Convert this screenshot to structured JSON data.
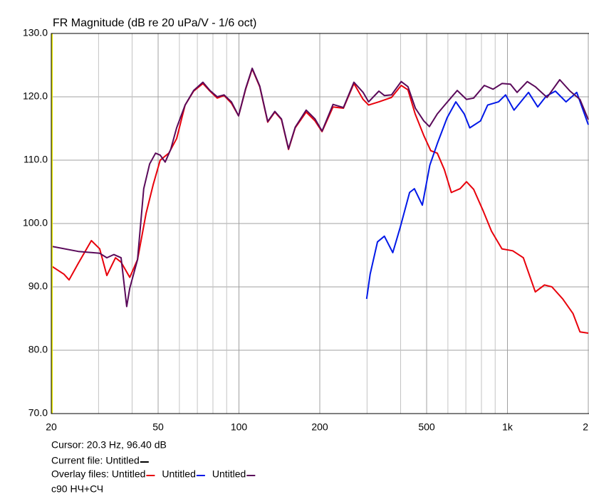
{
  "chart_data": {
    "type": "line",
    "title": "FR Magnitude (dB re 20 uPa/V - 1/6 oct)",
    "x_log": true,
    "grid": true,
    "xlim": [
      20,
      2000
    ],
    "ylim": [
      70,
      130
    ],
    "xticks": [
      20,
      50,
      100,
      200,
      500,
      {
        "value": 1000,
        "label": "1k"
      },
      {
        "value": 2000,
        "label": "2"
      }
    ],
    "xgrid": [
      30,
      40,
      60,
      70,
      80,
      90,
      300,
      400,
      600,
      700,
      800,
      900
    ],
    "yticks": [
      {
        "value": 70,
        "label": "70.0"
      },
      {
        "value": 80,
        "label": "80.0"
      },
      {
        "value": 90,
        "label": "90.0"
      },
      {
        "value": 100,
        "label": "100.0"
      },
      {
        "value": 110,
        "label": "110.0"
      },
      {
        "value": 120,
        "label": "120.0"
      },
      {
        "value": 130,
        "label": "130.0"
      }
    ],
    "cursor": "Cursor: 20.3 Hz, 96.40 dB",
    "current_label": "Current file:",
    "current_name": "Untitled",
    "overlay_label": "Overlay files:",
    "note": "с90 НЧ+СЧ",
    "series": [
      {
        "name": "Untitled",
        "color": "#e8000b",
        "x": [
          20,
          22.3,
          23.3,
          25.2,
          28.2,
          30.3,
          32.2,
          34.7,
          36.4,
          39.2,
          41.9,
          45.1,
          47.9,
          50.9,
          54.8,
          58.6,
          63,
          67.8,
          73.4,
          78,
          83,
          88,
          93.7,
          99.7,
          105.9,
          112,
          119.5,
          128,
          136,
          144,
          153,
          162,
          178,
          192,
          204,
          224,
          245,
          268,
          290,
          304,
          332,
          370,
          402,
          426,
          453,
          488,
          518,
          548,
          582,
          618,
          666,
          704,
          748,
          810,
          872,
          954,
          1046,
          1146,
          1270,
          1374,
          1464,
          1606,
          1754,
          1862,
          2000
        ],
        "values": [
          93.3,
          92.0,
          91.1,
          93.7,
          97.3,
          96.0,
          91.8,
          94.6,
          93.9,
          91.5,
          94.3,
          101.6,
          106.1,
          110.0,
          111.1,
          113.4,
          118.7,
          120.9,
          122.1,
          120.9,
          119.8,
          120.2,
          119.0,
          117.0,
          121.2,
          124.4,
          121.6,
          116.0,
          117.6,
          116.4,
          111.7,
          115.1,
          117.6,
          116.2,
          114.5,
          118.4,
          118.2,
          122.1,
          119.6,
          118.7,
          119.2,
          119.9,
          121.8,
          121.1,
          117.3,
          113.9,
          111.5,
          111.1,
          108.5,
          104.9,
          105.5,
          106.6,
          105.4,
          102.1,
          98.8,
          96.0,
          95.7,
          94.6,
          89.2,
          90.3,
          90.0,
          88.1,
          85.8,
          82.9,
          82.7
        ]
      },
      {
        "name": "Untitled",
        "color": "#0018e8",
        "x": [
          299,
          308,
          328,
          348,
          374,
          398,
          432,
          450,
          482,
          514,
          550,
          596,
          642,
          690,
          724,
          794,
          844,
          926,
          984,
          1058,
          1198,
          1296,
          1394,
          1508,
          1652,
          1812,
          2000
        ],
        "values": [
          88.1,
          92.0,
          97.1,
          98.0,
          95.4,
          99.3,
          104.9,
          105.5,
          102.9,
          109.2,
          112.8,
          116.7,
          119.2,
          117.3,
          115.1,
          116.2,
          118.7,
          119.2,
          120.3,
          117.9,
          120.7,
          118.4,
          120.1,
          120.9,
          119.2,
          120.7,
          115.6
        ]
      },
      {
        "name": "Untitled",
        "color": "#5a0a5a",
        "x": [
          20,
          25.2,
          30.3,
          32.2,
          34.2,
          36.4,
          38.2,
          39.2,
          41.9,
          44.2,
          46.5,
          48.9,
          50.9,
          53.1,
          55.7,
          58.6,
          63,
          67.8,
          73.4,
          78,
          83,
          88,
          93.7,
          99.7,
          105.9,
          112,
          119.5,
          128,
          136,
          144,
          153,
          162,
          178,
          192,
          204,
          224,
          245,
          268,
          290,
          304,
          332,
          348,
          370,
          402,
          426,
          454,
          488,
          512,
          548,
          584,
          650,
          704,
          748,
          820,
          884,
          954,
          1026,
          1086,
          1186,
          1270,
          1404,
          1566,
          1710,
          1862,
          2000
        ],
        "values": [
          96.4,
          95.6,
          95.3,
          94.6,
          95.1,
          94.6,
          86.9,
          89.8,
          94.3,
          105.5,
          109.4,
          111.1,
          110.8,
          109.7,
          111.7,
          115.1,
          118.7,
          121.0,
          122.3,
          121.0,
          120.0,
          120.3,
          119.2,
          117.0,
          121.3,
          124.5,
          121.7,
          116.1,
          117.7,
          116.5,
          111.8,
          115.2,
          117.9,
          116.5,
          114.6,
          118.8,
          118.3,
          122.3,
          120.7,
          119.2,
          120.9,
          120.2,
          120.3,
          122.4,
          121.6,
          118.2,
          116.2,
          115.3,
          117.3,
          118.7,
          121.0,
          119.6,
          119.8,
          121.8,
          121.2,
          122.1,
          122.0,
          120.7,
          122.4,
          121.6,
          119.9,
          122.7,
          120.9,
          119.6,
          116.4
        ]
      }
    ]
  }
}
